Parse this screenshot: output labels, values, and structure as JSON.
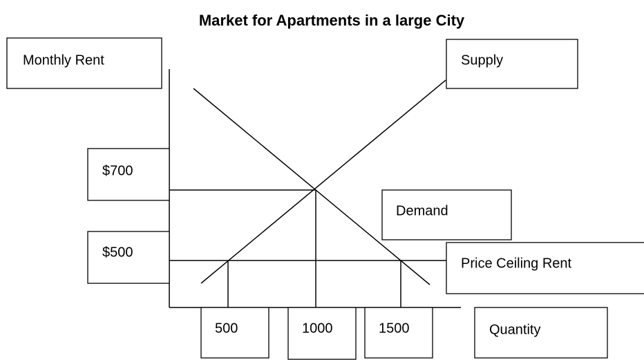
{
  "title": "Market for Apartments in a large City",
  "axes": {
    "y_label": "Monthly Rent",
    "x_label": "Quantity"
  },
  "curves": {
    "supply": "Supply",
    "demand": "Demand"
  },
  "price_labels": [
    "$700",
    "$500"
  ],
  "price_ceiling": "Price Ceiling Rent",
  "quantity_labels": [
    "500",
    "1000",
    "1500"
  ]
}
